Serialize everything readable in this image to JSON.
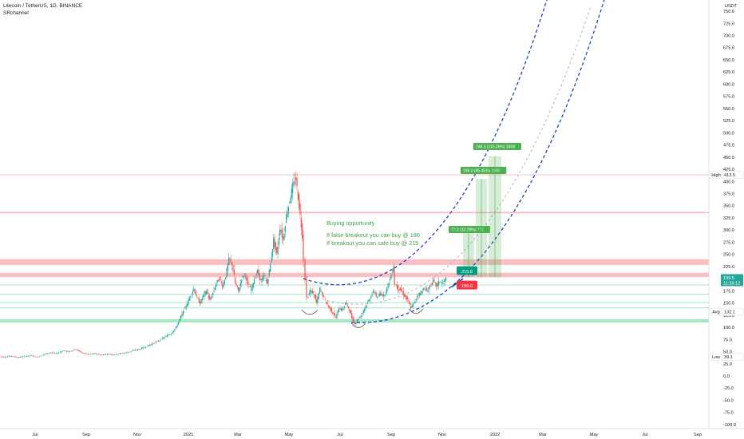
{
  "legend": {
    "symbol": "Litecoin / TetherUS, 1D, BINANCE",
    "indicator": "SRchannel"
  },
  "currency": "USDT",
  "note": {
    "line1": "Buying opportunity",
    "line2": "If false breakout you can buy @ 186",
    "line3": "If breakout you can safe buy @ 215"
  },
  "chart_data": {
    "type": "candlestick",
    "y_axis": {
      "ticks": [
        "750.0",
        "725.0",
        "700.0",
        "675.0",
        "650.0",
        "625.0",
        "600.0",
        "575.0",
        "550.0",
        "525.0",
        "500.0",
        "475.0",
        "450.0",
        "425.0",
        "400.0",
        "375.0",
        "350.0",
        "325.0",
        "300.0",
        "275.0",
        "250.0",
        "225.0",
        "200.0",
        "175.0",
        "150.0",
        "125.0",
        "100.0",
        "75.0",
        "50.0",
        "25.0",
        "0.0",
        "-25.0",
        "-50.0",
        "-75.0",
        "-100.0"
      ],
      "range": [
        -100,
        765
      ]
    },
    "x_axis": {
      "ticks": [
        "Jul",
        "Sep",
        "Nov",
        "2021",
        "Mar",
        "May",
        "Jul",
        "Sep",
        "Nov",
        "2022",
        "Mar",
        "May",
        "Jul",
        "Sep"
      ]
    },
    "price_path": [
      [
        0,
        40
      ],
      [
        8,
        39
      ],
      [
        16,
        41
      ],
      [
        24,
        38
      ],
      [
        32,
        40
      ],
      [
        40,
        42
      ],
      [
        48,
        39
      ],
      [
        56,
        44
      ],
      [
        64,
        48
      ],
      [
        72,
        46
      ],
      [
        80,
        52
      ],
      [
        88,
        50
      ],
      [
        96,
        55
      ],
      [
        104,
        48
      ],
      [
        112,
        44
      ],
      [
        120,
        46
      ],
      [
        128,
        43
      ],
      [
        136,
        45
      ],
      [
        144,
        44
      ],
      [
        152,
        46
      ],
      [
        160,
        48
      ],
      [
        168,
        52
      ],
      [
        176,
        55
      ],
      [
        184,
        60
      ],
      [
        192,
        66
      ],
      [
        200,
        72
      ],
      [
        208,
        80
      ],
      [
        216,
        88
      ],
      [
        222,
        100
      ],
      [
        228,
        122
      ],
      [
        232,
        135
      ],
      [
        236,
        150
      ],
      [
        240,
        165
      ],
      [
        244,
        180
      ],
      [
        248,
        160
      ],
      [
        252,
        150
      ],
      [
        256,
        165
      ],
      [
        260,
        175
      ],
      [
        264,
        155
      ],
      [
        268,
        170
      ],
      [
        272,
        190
      ],
      [
        276,
        200
      ],
      [
        280,
        185
      ],
      [
        284,
        205
      ],
      [
        288,
        240
      ],
      [
        292,
        230
      ],
      [
        296,
        190
      ],
      [
        300,
        175
      ],
      [
        304,
        200
      ],
      [
        308,
        210
      ],
      [
        312,
        185
      ],
      [
        316,
        178
      ],
      [
        320,
        200
      ],
      [
        324,
        215
      ],
      [
        328,
        195
      ],
      [
        332,
        205
      ],
      [
        336,
        190
      ],
      [
        340,
        230
      ],
      [
        344,
        280
      ],
      [
        348,
        250
      ],
      [
        352,
        305
      ],
      [
        356,
        280
      ],
      [
        360,
        330
      ],
      [
        364,
        360
      ],
      [
        368,
        390
      ],
      [
        372,
        405
      ],
      [
        376,
        350
      ],
      [
        380,
        290
      ],
      [
        382,
        240
      ],
      [
        384,
        200
      ],
      [
        386,
        160
      ],
      [
        390,
        175
      ],
      [
        394,
        170
      ],
      [
        398,
        150
      ],
      [
        402,
        180
      ],
      [
        406,
        165
      ],
      [
        410,
        150
      ],
      [
        414,
        140
      ],
      [
        418,
        130
      ],
      [
        422,
        120
      ],
      [
        426,
        140
      ],
      [
        430,
        135
      ],
      [
        434,
        150
      ],
      [
        438,
        140
      ],
      [
        442,
        120
      ],
      [
        446,
        108
      ],
      [
        450,
        118
      ],
      [
        454,
        125
      ],
      [
        458,
        140
      ],
      [
        462,
        150
      ],
      [
        466,
        165
      ],
      [
        470,
        175
      ],
      [
        474,
        160
      ],
      [
        478,
        170
      ],
      [
        482,
        165
      ],
      [
        486,
        180
      ],
      [
        490,
        200
      ],
      [
        494,
        225
      ],
      [
        496,
        190
      ],
      [
        500,
        180
      ],
      [
        504,
        175
      ],
      [
        508,
        165
      ],
      [
        512,
        155
      ],
      [
        516,
        140
      ],
      [
        520,
        150
      ],
      [
        524,
        165
      ],
      [
        528,
        170
      ],
      [
        532,
        180
      ],
      [
        536,
        175
      ],
      [
        540,
        185
      ],
      [
        544,
        195
      ],
      [
        548,
        185
      ],
      [
        552,
        195
      ],
      [
        556,
        190
      ],
      [
        560,
        200
      ]
    ],
    "last_price": "199.5",
    "countdown": "11:26:12",
    "price_labels": [
      {
        "label": "High",
        "value": "413.5"
      },
      {
        "label": "Avg",
        "value": "132.1"
      },
      {
        "label": "Low",
        "value": "39.1"
      }
    ],
    "entry_levels": [
      {
        "value": "215.6",
        "color": "#089981"
      },
      {
        "value": "186.0",
        "color": "#f23645"
      }
    ],
    "measurements": [
      {
        "label": "77.2 (32.29%) 771"
      },
      {
        "label": "199.0 (95.45%) 1980"
      },
      {
        "label": "248.3 (115.36%) 2468"
      }
    ],
    "annotation_colors": {
      "channel": "#1e3fbf",
      "channel_mid": "#b2b5be",
      "support_zone": "#a8e6c3",
      "resistance_zone": "#f7b9bb",
      "measure": "#4caf50",
      "note": "#43a047"
    }
  }
}
